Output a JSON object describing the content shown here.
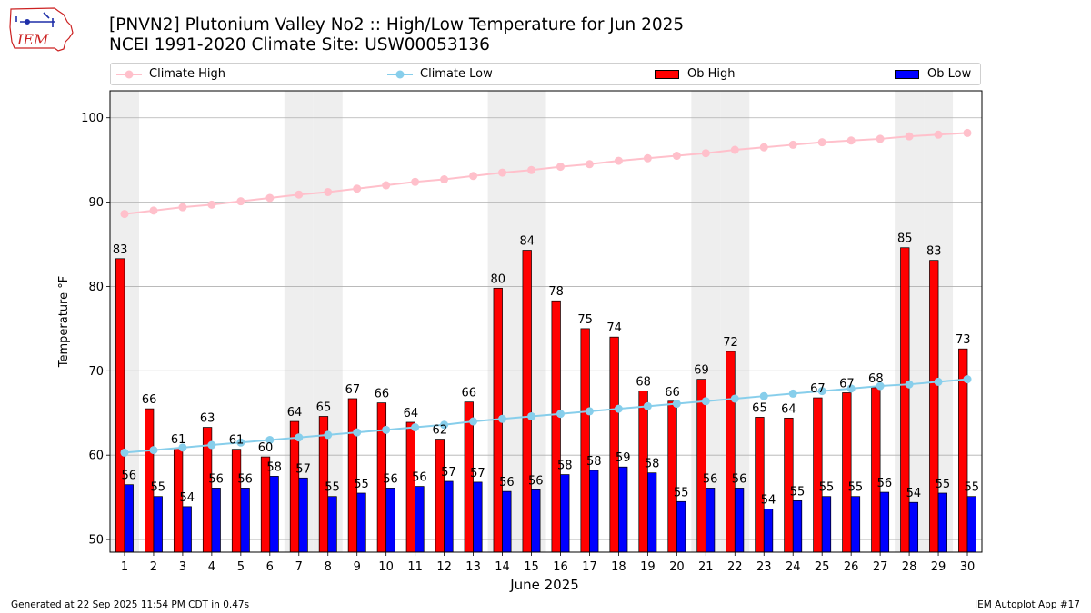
{
  "header": {
    "title_line1": "[PNVN2] Plutonium Valley No2 :: High/Low Temperature for Jun 2025",
    "title_line2": "NCEI 1991-2020 Climate Site: USW00053136",
    "logo_text": "IEM"
  },
  "footer": {
    "left": "Generated at 22 Sep 2025 11:54 PM CDT in 0.47s",
    "right": "IEM Autoplot App #17"
  },
  "colors": {
    "climate_high": "#ffc0cb",
    "climate_low": "#87ceeb",
    "ob_high": "#ff0000",
    "ob_low": "#0000ff",
    "weekend_band": "#eeeeee",
    "logo": "#cc2222"
  },
  "chart_data": {
    "type": "bar",
    "title": "[PNVN2] Plutonium Valley No2 :: High/Low Temperature for Jun 2025",
    "subtitle": "NCEI 1991-2020 Climate Site: USW00053136",
    "xlabel": "June 2025",
    "ylabel": "Temperature °F",
    "ylim": [
      48.5,
      103.2
    ],
    "yticks": [
      50,
      60,
      70,
      80,
      90,
      100
    ],
    "grid": "y",
    "legend_position": "top",
    "categories": [
      "1",
      "2",
      "3",
      "4",
      "5",
      "6",
      "7",
      "8",
      "9",
      "10",
      "11",
      "12",
      "13",
      "14",
      "15",
      "16",
      "17",
      "18",
      "19",
      "20",
      "21",
      "22",
      "23",
      "24",
      "25",
      "26",
      "27",
      "28",
      "29",
      "30"
    ],
    "shaded_days": [
      "1",
      "7",
      "8",
      "14",
      "15",
      "21",
      "22",
      "28",
      "29"
    ],
    "series": [
      {
        "name": "Ob High",
        "kind": "bar",
        "values": [
          83.3,
          65.5,
          60.8,
          63.3,
          60.7,
          59.8,
          64.0,
          64.6,
          66.7,
          66.2,
          63.9,
          61.9,
          66.3,
          79.8,
          84.3,
          78.3,
          75.0,
          74.0,
          67.6,
          66.4,
          69.0,
          72.3,
          64.5,
          64.4,
          66.8,
          67.4,
          68.0,
          84.6,
          83.1,
          72.6
        ],
        "labels": [
          "83",
          "66",
          "61",
          "63",
          "61",
          "60",
          "64",
          "65",
          "67",
          "66",
          "64",
          "62",
          "66",
          "80",
          "84",
          "78",
          "75",
          "74",
          "68",
          "66",
          "69",
          "72",
          "65",
          "64",
          "67",
          "67",
          "68",
          "85",
          "83",
          "73"
        ]
      },
      {
        "name": "Ob Low",
        "kind": "bar",
        "values": [
          56.5,
          55.1,
          53.9,
          56.1,
          56.1,
          57.5,
          57.3,
          55.1,
          55.5,
          56.1,
          56.3,
          56.9,
          56.8,
          55.7,
          55.9,
          57.7,
          58.2,
          58.6,
          57.9,
          54.5,
          56.1,
          56.1,
          53.6,
          54.6,
          55.1,
          55.1,
          55.6,
          54.4,
          55.5,
          55.1
        ],
        "labels": [
          "56",
          "55",
          "54",
          "56",
          "56",
          "58",
          "57",
          "55",
          "55",
          "56",
          "56",
          "57",
          "57",
          "56",
          "56",
          "58",
          "58",
          "59",
          "58",
          "55",
          "56",
          "56",
          "54",
          "55",
          "55",
          "55",
          "56",
          "54",
          "55",
          "55"
        ]
      },
      {
        "name": "Climate High",
        "kind": "line",
        "values": [
          88.6,
          89.0,
          89.4,
          89.7,
          90.1,
          90.5,
          90.9,
          91.2,
          91.6,
          92.0,
          92.4,
          92.7,
          93.1,
          93.5,
          93.8,
          94.2,
          94.5,
          94.9,
          95.2,
          95.5,
          95.8,
          96.2,
          96.5,
          96.8,
          97.1,
          97.3,
          97.5,
          97.8,
          98.0,
          98.2
        ]
      },
      {
        "name": "Climate Low",
        "kind": "line",
        "values": [
          60.3,
          60.6,
          60.9,
          61.2,
          61.5,
          61.8,
          62.1,
          62.4,
          62.7,
          63.0,
          63.3,
          63.6,
          64.0,
          64.3,
          64.6,
          64.9,
          65.2,
          65.5,
          65.8,
          66.1,
          66.4,
          66.7,
          67.0,
          67.3,
          67.6,
          67.9,
          68.2,
          68.4,
          68.7,
          69.0
        ]
      }
    ]
  }
}
